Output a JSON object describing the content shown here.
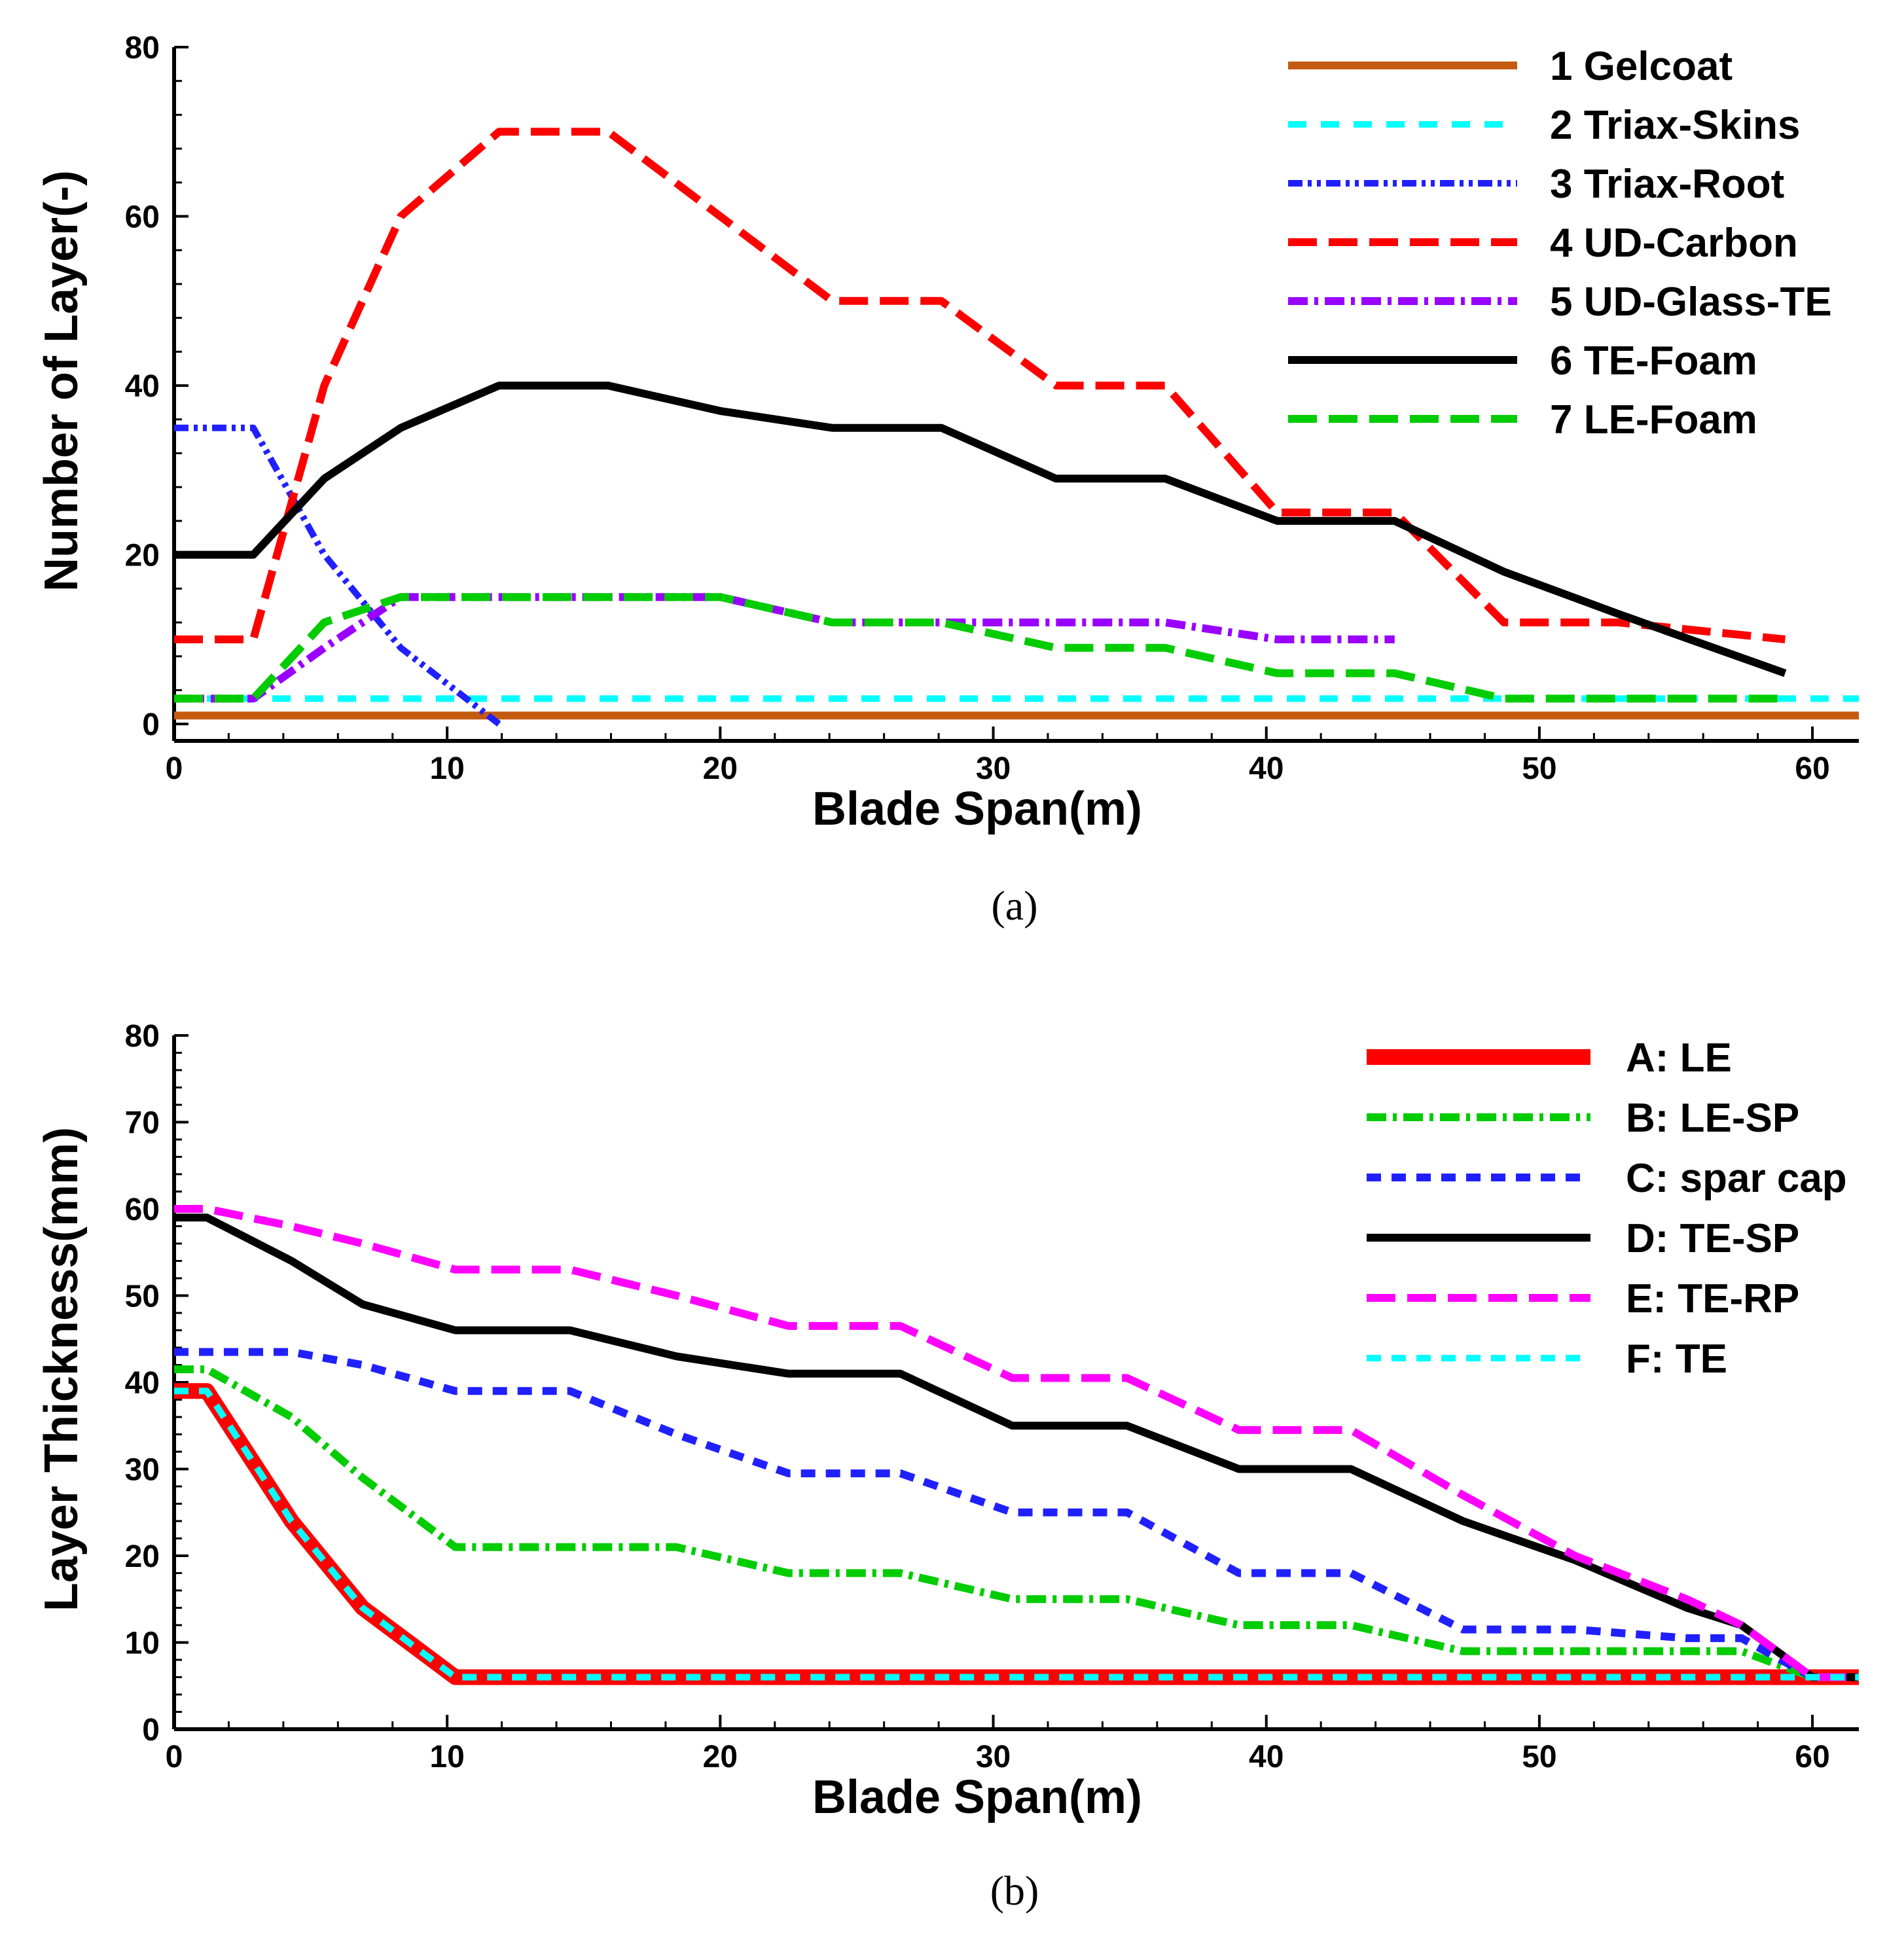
{
  "chart_data": [
    {
      "type": "line",
      "panel_label": "(a)",
      "xlabel": "Blade Span(m)",
      "ylabel": "Number of Layer(-)",
      "xlim": [
        0,
        61.7
      ],
      "ylim": [
        -2,
        80
      ],
      "xticks": [
        0,
        10,
        20,
        30,
        40,
        50,
        60
      ],
      "yticks": [
        0,
        20,
        40,
        60,
        80
      ],
      "legend_position": "top-right",
      "series": [
        {
          "name": "1 Gelcoat",
          "color": "#c55a11",
          "dash": "solid",
          "width": 1.2,
          "x": [
            0,
            61.7
          ],
          "y": [
            1,
            1
          ]
        },
        {
          "name": "2 Triax-Skins",
          "color": "#00ffff",
          "dash": "dash",
          "width": 1.0,
          "x": [
            0,
            61.7
          ],
          "y": [
            3,
            3
          ]
        },
        {
          "name": "3 Triax-Root",
          "color": "#2020ff",
          "dash": "dashdotdot",
          "width": 1.0,
          "x": [
            0,
            2.9,
            5.5,
            8.3,
            11.9
          ],
          "y": [
            35,
            35,
            20,
            9,
            0
          ]
        },
        {
          "name": "4 UD-Carbon",
          "color": "#ff0000",
          "dash": "longdash",
          "width": 1.2,
          "x": [
            0,
            2.9,
            5.5,
            8.3,
            11.9,
            15.9,
            20,
            24.1,
            28.1,
            32.3,
            36.3,
            40.4,
            44.7,
            48.7,
            52.9,
            59
          ],
          "y": [
            10,
            10,
            40,
            60,
            70,
            70,
            60,
            50,
            50,
            40,
            40,
            25,
            25,
            12,
            12,
            10
          ]
        },
        {
          "name": "5 UD-Glass-TE",
          "color": "#9900ff",
          "dash": "dashdot",
          "width": 1.2,
          "x": [
            0,
            2.9,
            5.5,
            8.3,
            11.9,
            15.9,
            20,
            24.1,
            28.1,
            32.3,
            36.3,
            40.4,
            44.7
          ],
          "y": [
            3,
            3,
            9,
            15,
            15,
            15,
            15,
            12,
            12,
            12,
            12,
            10,
            10
          ]
        },
        {
          "name": "6 TE-Foam",
          "color": "#000000",
          "dash": "solid",
          "width": 1.2,
          "x": [
            0,
            2.9,
            5.5,
            8.3,
            11.9,
            15.9,
            20,
            24.1,
            28.1,
            32.3,
            36.3,
            40.4,
            44.7,
            48.7,
            52.9,
            59
          ],
          "y": [
            20,
            20,
            29,
            35,
            40,
            40,
            37,
            35,
            35,
            29,
            29,
            24,
            24,
            18,
            13,
            6
          ]
        },
        {
          "name": "7 LE-Foam",
          "color": "#00cc00",
          "dash": "longdash",
          "width": 1.2,
          "x": [
            0,
            2.9,
            5.5,
            8.3,
            11.9,
            15.9,
            20,
            24.1,
            28.1,
            32.3,
            36.3,
            40.4,
            44.7,
            48.7,
            59
          ],
          "y": [
            3,
            3,
            12,
            15,
            15,
            15,
            15,
            12,
            12,
            9,
            9,
            6,
            6,
            3,
            3
          ]
        }
      ]
    },
    {
      "type": "line",
      "panel_label": "(b)",
      "xlabel": "Blade Span(m)",
      "ylabel": "Layer Thickness(mm)",
      "xlim": [
        0,
        61.7
      ],
      "ylim": [
        0,
        80
      ],
      "xticks": [
        0,
        10,
        20,
        30,
        40,
        50,
        60
      ],
      "yticks": [
        0,
        10,
        20,
        30,
        40,
        50,
        60,
        70,
        80
      ],
      "legend_position": "top-right",
      "series": [
        {
          "name": "A: LE",
          "color": "#ff0000",
          "dash": "solid",
          "width": 2.4,
          "x": [
            0,
            1.2,
            4.3,
            6.9,
            10.3,
            61.7
          ],
          "y": [
            39,
            39,
            24,
            14,
            6,
            6
          ]
        },
        {
          "name": "B: LE-SP",
          "color": "#00cc00",
          "dash": "dashdot",
          "width": 1.2,
          "x": [
            0,
            1.2,
            4.3,
            6.9,
            10.3,
            14.5,
            18.4,
            22.5,
            26.6,
            30.7,
            34.9,
            39.0,
            43.1,
            47.2,
            51.3,
            55.4,
            57.4,
            60.0,
            61.7
          ],
          "y": [
            41.5,
            41.5,
            36,
            29,
            21,
            21,
            21,
            18,
            18,
            15,
            15,
            12,
            12,
            9,
            9,
            9,
            9,
            6,
            6
          ]
        },
        {
          "name": "C: spar cap",
          "color": "#2020ff",
          "dash": "shortdash",
          "width": 1.2,
          "x": [
            0,
            1.2,
            4.3,
            6.9,
            10.3,
            14.5,
            18.4,
            22.5,
            26.6,
            30.7,
            34.9,
            39.0,
            43.1,
            47.2,
            51.3,
            55.4,
            57.4,
            60.0,
            61.7
          ],
          "y": [
            43.5,
            43.5,
            43.5,
            42,
            39,
            39,
            34,
            29.5,
            29.5,
            25,
            25,
            18,
            18,
            11.5,
            11.5,
            10.5,
            10.5,
            6,
            6
          ]
        },
        {
          "name": "D: TE-SP",
          "color": "#000000",
          "dash": "solid",
          "width": 1.2,
          "x": [
            0,
            1.2,
            4.3,
            6.9,
            10.3,
            14.5,
            18.4,
            22.5,
            26.6,
            30.7,
            34.9,
            39.0,
            43.1,
            47.2,
            51.3,
            55.4,
            57.4,
            60.0,
            61.7
          ],
          "y": [
            59,
            59,
            54,
            49,
            46,
            46,
            43,
            41,
            41,
            35,
            35,
            30,
            30,
            24,
            19.5,
            14,
            12,
            6,
            6
          ]
        },
        {
          "name": "E: TE-RP",
          "color": "#ff00ff",
          "dash": "longdash",
          "width": 1.2,
          "x": [
            0,
            1.2,
            4.3,
            6.9,
            10.3,
            14.5,
            18.4,
            22.5,
            26.6,
            30.7,
            34.9,
            39.0,
            43.1,
            47.2,
            51.3,
            55.4,
            57.4,
            60.0,
            61.7
          ],
          "y": [
            60,
            60,
            58,
            56,
            53,
            53,
            50,
            46.5,
            46.5,
            40.5,
            40.5,
            34.5,
            34.5,
            27,
            20,
            15,
            12,
            6,
            6
          ]
        },
        {
          "name": "F: TE",
          "color": "#00ffff",
          "dash": "shortdash",
          "width": 1.0,
          "x": [
            0,
            1.2,
            4.3,
            6.9,
            10.3,
            61.7
          ],
          "y": [
            39,
            39,
            24,
            14,
            6,
            6
          ]
        }
      ]
    }
  ]
}
